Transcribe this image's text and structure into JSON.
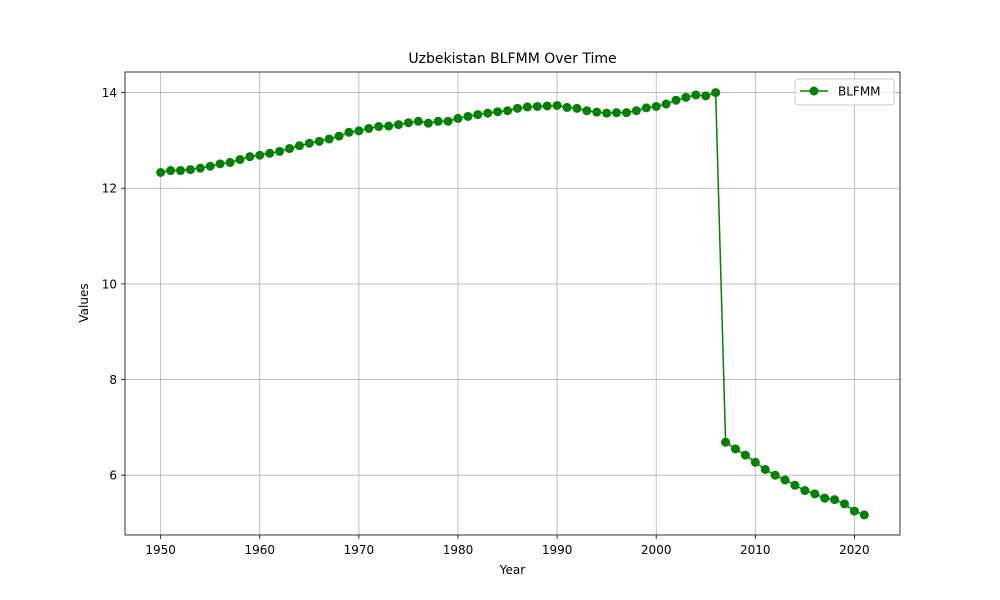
{
  "chart_data": {
    "type": "line",
    "title": "Uzbekistan BLFMM Over Time",
    "xlabel": "Year",
    "ylabel": "Values",
    "xlim": [
      1946.4,
      2024.6
    ],
    "ylim": [
      4.75,
      14.43
    ],
    "xticks": [
      1950,
      1960,
      1970,
      1980,
      1990,
      2000,
      2010,
      2020
    ],
    "yticks": [
      6,
      8,
      10,
      12,
      14
    ],
    "grid": true,
    "legend_position": "top-right",
    "colors": {
      "series": "#008000",
      "grid": "#b0b0b0",
      "axis": "#000000"
    },
    "series": [
      {
        "name": "BLFMM",
        "marker": "circle",
        "x": [
          1950,
          1951,
          1952,
          1953,
          1954,
          1955,
          1956,
          1957,
          1958,
          1959,
          1960,
          1961,
          1962,
          1963,
          1964,
          1965,
          1966,
          1967,
          1968,
          1969,
          1970,
          1971,
          1972,
          1973,
          1974,
          1975,
          1976,
          1977,
          1978,
          1979,
          1980,
          1981,
          1982,
          1983,
          1984,
          1985,
          1986,
          1987,
          1988,
          1989,
          1990,
          1991,
          1992,
          1993,
          1994,
          1995,
          1996,
          1997,
          1998,
          1999,
          2000,
          2001,
          2002,
          2003,
          2004,
          2005,
          2006,
          2007,
          2008,
          2009,
          2010,
          2011,
          2012,
          2013,
          2014,
          2015,
          2016,
          2017,
          2018,
          2019,
          2020,
          2021
        ],
        "values": [
          12.33,
          12.37,
          12.37,
          12.39,
          12.42,
          12.46,
          12.51,
          12.54,
          12.6,
          12.66,
          12.69,
          12.73,
          12.77,
          12.83,
          12.89,
          12.94,
          12.98,
          13.03,
          13.09,
          13.17,
          13.2,
          13.25,
          13.29,
          13.3,
          13.33,
          13.37,
          13.4,
          13.36,
          13.4,
          13.4,
          13.46,
          13.5,
          13.54,
          13.57,
          13.6,
          13.62,
          13.67,
          13.7,
          13.71,
          13.72,
          13.73,
          13.69,
          13.67,
          13.62,
          13.59,
          13.57,
          13.58,
          13.58,
          13.62,
          13.68,
          13.71,
          13.76,
          13.84,
          13.9,
          13.95,
          13.93,
          14.0,
          6.69,
          6.55,
          6.42,
          6.27,
          6.12,
          6.0,
          5.9,
          5.79,
          5.68,
          5.61,
          5.52,
          5.49,
          5.4,
          5.25,
          5.17
        ]
      }
    ]
  }
}
